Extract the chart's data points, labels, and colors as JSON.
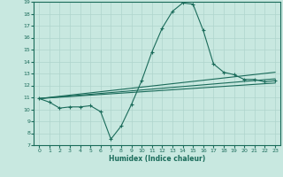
{
  "title": "",
  "xlabel": "Humidex (Indice chaleur)",
  "ylabel": "",
  "bg_color": "#c8e8e0",
  "grid_color": "#afd4cc",
  "line_color": "#1a6b5a",
  "xlim": [
    -0.5,
    23.5
  ],
  "ylim": [
    7,
    19
  ],
  "xticks": [
    0,
    1,
    2,
    3,
    4,
    5,
    6,
    7,
    8,
    9,
    10,
    11,
    12,
    13,
    14,
    15,
    16,
    17,
    18,
    19,
    20,
    21,
    22,
    23
  ],
  "yticks": [
    7,
    8,
    9,
    10,
    11,
    12,
    13,
    14,
    15,
    16,
    17,
    18,
    19
  ],
  "series1_x": [
    0,
    1,
    2,
    3,
    4,
    5,
    6,
    7,
    8,
    9,
    10,
    11,
    12,
    13,
    14,
    15,
    16,
    17,
    18,
    19,
    20,
    21,
    22,
    23
  ],
  "series1_y": [
    10.9,
    10.6,
    10.1,
    10.2,
    10.2,
    10.3,
    9.8,
    7.5,
    8.6,
    10.4,
    12.4,
    14.8,
    16.8,
    18.2,
    18.9,
    18.8,
    16.6,
    13.8,
    13.1,
    12.9,
    12.5,
    12.5,
    12.3,
    12.4
  ],
  "series2_x": [
    0,
    23
  ],
  "series2_y": [
    10.9,
    12.2
  ],
  "series3_x": [
    0,
    23
  ],
  "series3_y": [
    10.9,
    12.55
  ],
  "series4_x": [
    0,
    23
  ],
  "series4_y": [
    10.9,
    13.1
  ],
  "marker": "+"
}
